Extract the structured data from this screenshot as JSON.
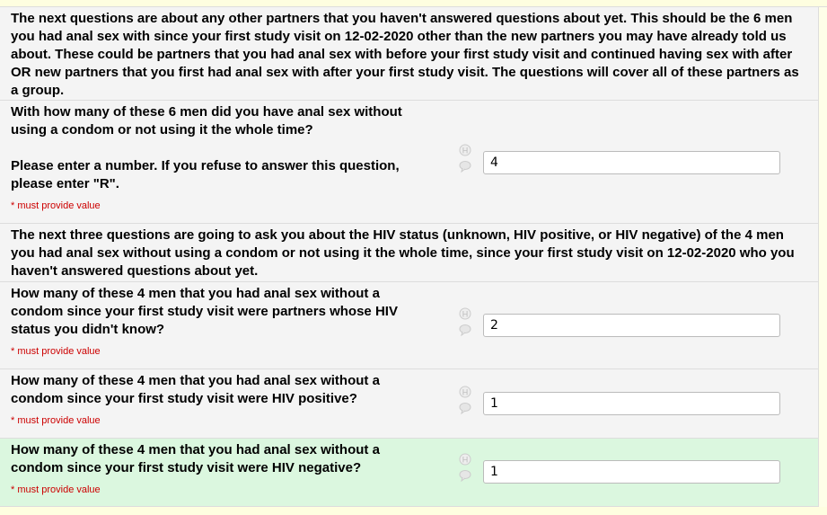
{
  "intro1": "The next questions are about any other partners that you haven't answered questions about yet. This should be the 6 men you had anal sex with since your first study visit on 12-02-2020 other than the new partners you may have already told us about. These could be partners that you had anal sex with before your first study visit and continued having sex with after OR new partners that you first had anal sex with after your first study visit. The questions will cover all of these partners as a group.",
  "intro2": "The next three questions are going to ask you about the HIV status (unknown, HIV positive, or HIV negative) of the 4 men you had anal sex without using a condom or not using it the whole time, since your first study visit on 12-02-2020 who you haven't answered questions about yet.",
  "required_note": "* must provide value",
  "icons": {
    "history": "history-H-icon",
    "comment": "comment-bubble-icon"
  },
  "colors": {
    "highlight_row": "#dbf7df",
    "required": "#cc0000"
  },
  "questions": [
    {
      "label": "With how many of these 6 men did you have anal sex without using a condom or not using it the whole time?",
      "note": "Please enter a number. If you refuse to answer this question, please enter \"R\".",
      "value": "4"
    },
    {
      "label": "How many of these 4 men that you had anal sex without a condom since your first study visit were partners whose HIV status you didn't know?",
      "value": "2"
    },
    {
      "label": "How many of these 4 men that you had anal sex without a condom since your first study visit were HIV positive?",
      "value": "1"
    },
    {
      "label": "How many of these 4 men that you had anal sex without a condom since your first study visit were HIV negative?",
      "value": "1"
    }
  ]
}
